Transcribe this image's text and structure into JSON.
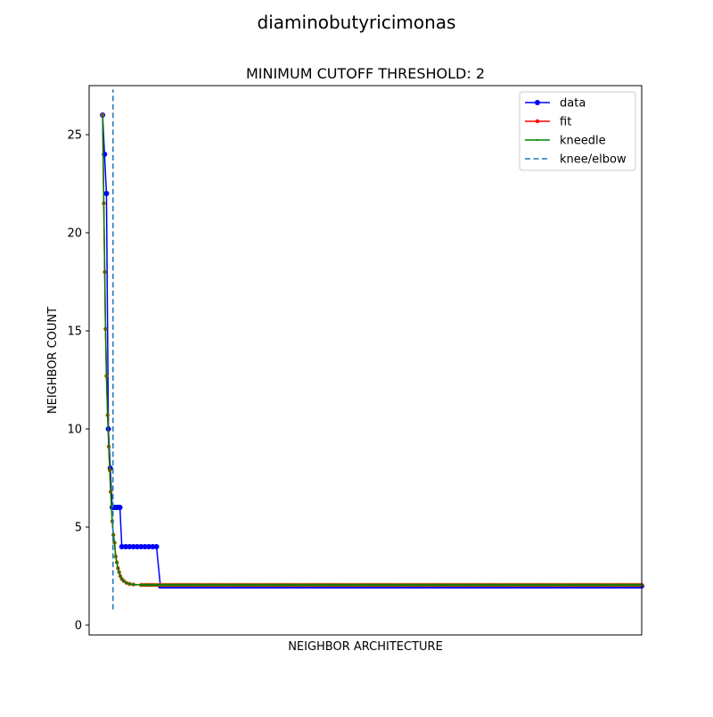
{
  "figure": {
    "suptitle": "diaminobutyricimonas"
  },
  "chart_data": {
    "type": "line",
    "title": "MINIMUM CUTOFF THRESHOLD: 2",
    "xlabel": "NEIGHBOR ARCHITECTURE",
    "ylabel": "NEIGHBOR COUNT",
    "xlim": [
      -3.5,
      140
    ],
    "ylim": [
      -0.5,
      27.5
    ],
    "x_tick_labels_shown": false,
    "yticks": [
      0,
      5,
      10,
      15,
      20,
      25
    ],
    "grid": false,
    "legend": {
      "position": "upper right",
      "entries": [
        "data",
        "fit",
        "kneedle",
        "knee/elbow"
      ]
    },
    "colors": {
      "data": "#0000ff",
      "fit": "#ff0000",
      "kneedle": "#008000",
      "knee_elbow": "#1f77b4",
      "fit_marker": "#b05000"
    },
    "series": [
      {
        "name": "data",
        "style": "solid line with circle markers",
        "points": [
          [
            0,
            26
          ],
          [
            0.5,
            24
          ],
          [
            1,
            22
          ],
          [
            1.5,
            10
          ],
          [
            2,
            8
          ],
          [
            2.5,
            6
          ],
          [
            3,
            6
          ],
          [
            3.5,
            6
          ],
          [
            4,
            6
          ],
          [
            4.5,
            6
          ],
          [
            5,
            4
          ],
          [
            6,
            4
          ],
          [
            7,
            4
          ],
          [
            8,
            4
          ],
          [
            9,
            4
          ],
          [
            10,
            4
          ],
          [
            11,
            4
          ],
          [
            12,
            4
          ],
          [
            13,
            4
          ],
          [
            14,
            4
          ],
          [
            15,
            2
          ],
          [
            140,
            2
          ]
        ],
        "flat_tail": {
          "x_start": 15,
          "x_end": 140,
          "value": 2
        }
      },
      {
        "name": "fit",
        "style": "solid line with small dot markers",
        "points": [
          [
            0,
            26
          ],
          [
            0.3,
            21.5
          ],
          [
            0.55,
            18
          ],
          [
            0.75,
            15.1
          ],
          [
            1,
            12.7
          ],
          [
            1.3,
            10.7
          ],
          [
            1.6,
            9.1
          ],
          [
            1.85,
            7.9
          ],
          [
            2.1,
            6.8
          ],
          [
            2.5,
            5.3
          ],
          [
            2.8,
            4.6
          ],
          [
            3.1,
            4.2
          ],
          [
            3.4,
            3.5
          ],
          [
            3.7,
            3.2
          ],
          [
            4,
            2.9
          ],
          [
            4.3,
            2.7
          ],
          [
            4.6,
            2.5
          ],
          [
            5,
            2.35
          ],
          [
            5.5,
            2.25
          ],
          [
            6.2,
            2.15
          ],
          [
            7,
            2.1
          ],
          [
            8,
            2.07
          ],
          [
            10,
            2.05
          ],
          [
            140,
            2.05
          ]
        ],
        "flat_tail": {
          "x_start": 10,
          "x_end": 140,
          "value": 2.05
        }
      },
      {
        "name": "kneedle",
        "style": "solid line with tiny markers",
        "points": [
          [
            0,
            26
          ],
          [
            0.3,
            21.5
          ],
          [
            0.55,
            18
          ],
          [
            0.75,
            15.1
          ],
          [
            1,
            12.7
          ],
          [
            1.3,
            10.7
          ],
          [
            1.6,
            9.1
          ],
          [
            1.85,
            7.9
          ],
          [
            2.1,
            6.8
          ],
          [
            2.5,
            5.3
          ],
          [
            2.8,
            4.6
          ],
          [
            3.1,
            4.2
          ],
          [
            3.4,
            3.5
          ],
          [
            3.7,
            3.2
          ],
          [
            4,
            2.9
          ],
          [
            4.3,
            2.7
          ],
          [
            4.6,
            2.5
          ],
          [
            5,
            2.35
          ],
          [
            5.5,
            2.25
          ],
          [
            6.2,
            2.15
          ],
          [
            7,
            2.1
          ],
          [
            8,
            2.07
          ],
          [
            10,
            2.05
          ],
          [
            140,
            2.05
          ]
        ],
        "flat_tail": {
          "x_start": 10,
          "x_end": 140,
          "value": 2.05
        }
      },
      {
        "name": "knee/elbow",
        "style": "dashed vertical line",
        "x": 2.7,
        "y_range": [
          0.8,
          27.3
        ]
      }
    ]
  }
}
